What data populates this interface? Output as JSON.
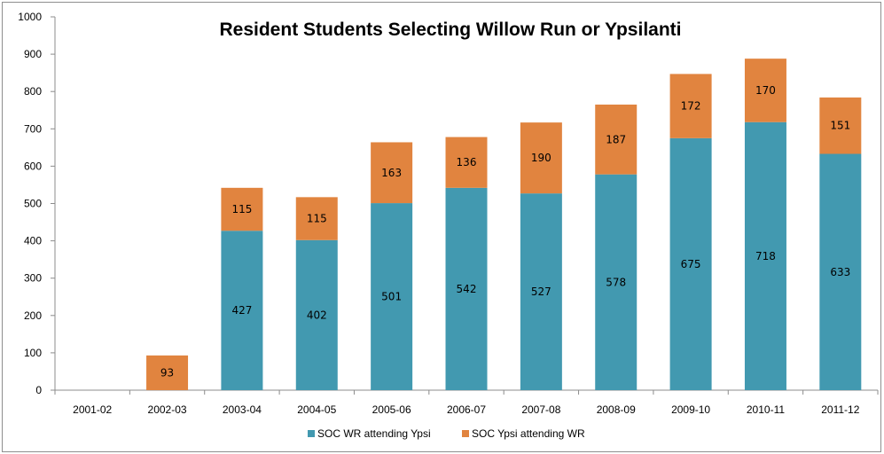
{
  "chart_data": {
    "type": "bar",
    "stacked": true,
    "title": "Resident Students Selecting Willow Run or Ypsilanti",
    "categories": [
      "2001-02",
      "2002-03",
      "2003-04",
      "2004-05",
      "2005-06",
      "2006-07",
      "2007-08",
      "2008-09",
      "2009-10",
      "2010-11",
      "2011-12"
    ],
    "series": [
      {
        "name": "SOC WR attending Ypsi",
        "color": "#4299b0",
        "values": [
          0,
          0,
          427,
          402,
          501,
          542,
          527,
          578,
          675,
          718,
          633
        ]
      },
      {
        "name": "SOC Ypsi attending WR",
        "color": "#e1843f",
        "values": [
          0,
          93,
          115,
          115,
          163,
          136,
          190,
          187,
          172,
          170,
          151
        ]
      }
    ],
    "ylim": [
      0,
      1000
    ],
    "yticks": [
      0,
      100,
      200,
      300,
      400,
      500,
      600,
      700,
      800,
      900,
      1000
    ],
    "grid": false,
    "legend_position": "bottom",
    "xlabel": "",
    "ylabel": ""
  }
}
